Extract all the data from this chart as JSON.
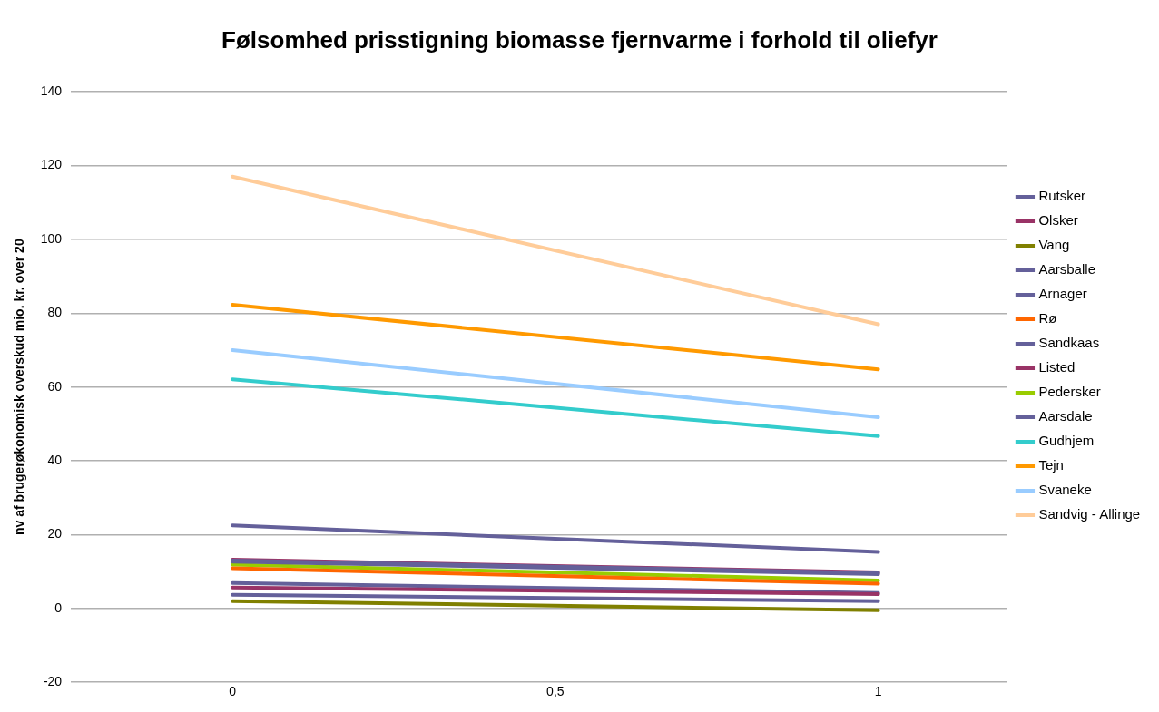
{
  "chart_data": {
    "type": "line",
    "title": "Følsomhed prisstigning biomasse fjernvarme i forhold til oliefyr",
    "ylabel": "nv af brugerøkonomisk overskud mio. kr. over 20",
    "x": [
      0,
      1
    ],
    "xlim": [
      -0.25,
      1.2
    ],
    "xticks": [
      0,
      {
        "value": 0.5,
        "label": "0,5"
      },
      1
    ],
    "ylim": [
      -20,
      140
    ],
    "yticks": [
      -20,
      0,
      20,
      40,
      60,
      80,
      100,
      120,
      140
    ],
    "grid": "y",
    "legend": "right",
    "marker": "none",
    "line_style": "solid",
    "series": [
      {
        "name": "Rutsker",
        "color": "#64609a",
        "values": [
          13.0,
          9.6
        ]
      },
      {
        "name": "Olsker",
        "color": "#993366",
        "values": [
          13.2,
          9.8
        ]
      },
      {
        "name": "Vang",
        "color": "#808000",
        "values": [
          2.0,
          -0.5
        ]
      },
      {
        "name": "Aarsballe",
        "color": "#64609a",
        "values": [
          12.7,
          9.3
        ]
      },
      {
        "name": "Arnager",
        "color": "#64609a",
        "values": [
          3.7,
          2.0
        ]
      },
      {
        "name": "Rø",
        "color": "#ff6600",
        "values": [
          10.9,
          6.7
        ]
      },
      {
        "name": "Sandkaas",
        "color": "#64609a",
        "values": [
          22.5,
          15.3
        ]
      },
      {
        "name": "Listed",
        "color": "#993366",
        "values": [
          5.7,
          3.9
        ]
      },
      {
        "name": "Pedersker",
        "color": "#99cc00",
        "values": [
          11.9,
          7.6
        ]
      },
      {
        "name": "Aarsdale",
        "color": "#64609a",
        "values": [
          6.9,
          4.2
        ]
      },
      {
        "name": "Gudhjem",
        "color": "#33cccc",
        "values": [
          62.1,
          46.7
        ]
      },
      {
        "name": "Tejn",
        "color": "#ff9900",
        "values": [
          82.3,
          64.8
        ]
      },
      {
        "name": "Svaneke",
        "color": "#99ccff",
        "values": [
          70.0,
          51.8
        ]
      },
      {
        "name": "Sandvig - Allinge",
        "color": "#ffcc99",
        "values": [
          117,
          77
        ]
      }
    ]
  }
}
